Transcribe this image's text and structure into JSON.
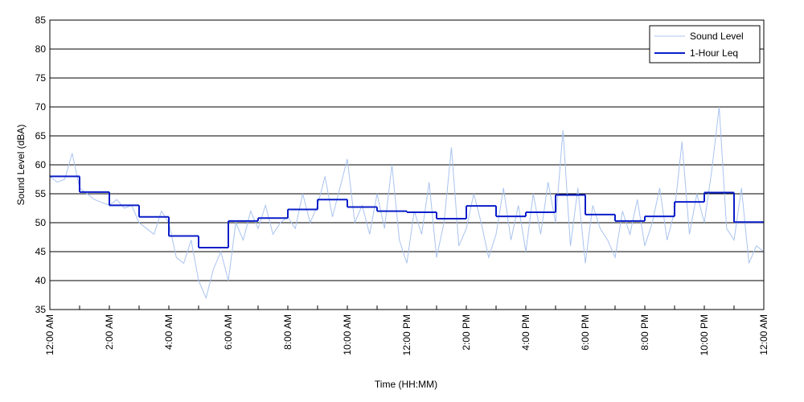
{
  "chart_data": {
    "type": "line",
    "xlabel": "Time (HH:MM)",
    "ylabel": "Sound Level (dBA)",
    "xlim": [
      0,
      24
    ],
    "ylim": [
      35,
      85
    ],
    "xticks": [
      {
        "value": 0,
        "label": "12:00 AM"
      },
      {
        "value": 2,
        "label": "2:00 AM"
      },
      {
        "value": 4,
        "label": "4:00 AM"
      },
      {
        "value": 6,
        "label": "6:00 AM"
      },
      {
        "value": 8,
        "label": "8:00 AM"
      },
      {
        "value": 10,
        "label": "10:00 AM"
      },
      {
        "value": 12,
        "label": "12:00 PM"
      },
      {
        "value": 14,
        "label": "2:00 PM"
      },
      {
        "value": 16,
        "label": "4:00 PM"
      },
      {
        "value": 18,
        "label": "6:00 PM"
      },
      {
        "value": 20,
        "label": "8:00 PM"
      },
      {
        "value": 22,
        "label": "10:00 PM"
      },
      {
        "value": 24,
        "label": "12:00 AM"
      }
    ],
    "xminor_ticks": [
      1,
      3,
      5,
      7,
      9,
      11,
      13,
      15,
      17,
      19,
      21,
      23
    ],
    "yticks": [
      35,
      40,
      45,
      50,
      55,
      60,
      65,
      70,
      75,
      80,
      85
    ],
    "grid": true,
    "legend": "upper right",
    "series": [
      {
        "name": "Sound Level",
        "color": "#a9c3ef",
        "step": false,
        "x": [
          0,
          0.25,
          0.5,
          0.75,
          1,
          1.25,
          1.5,
          1.75,
          2,
          2.25,
          2.5,
          2.75,
          3,
          3.25,
          3.5,
          3.75,
          4,
          4.25,
          4.5,
          4.75,
          5,
          5.25,
          5.5,
          5.75,
          6,
          6.25,
          6.5,
          6.75,
          7,
          7.25,
          7.5,
          7.75,
          8,
          8.25,
          8.5,
          8.75,
          9,
          9.25,
          9.5,
          9.75,
          10,
          10.25,
          10.5,
          10.75,
          11,
          11.25,
          11.5,
          11.75,
          12,
          12.25,
          12.5,
          12.75,
          13,
          13.25,
          13.5,
          13.75,
          14,
          14.25,
          14.5,
          14.75,
          15,
          15.25,
          15.5,
          15.75,
          16,
          16.25,
          16.5,
          16.75,
          17,
          17.25,
          17.5,
          17.75,
          18,
          18.25,
          18.5,
          18.75,
          19,
          19.25,
          19.5,
          19.75,
          20,
          20.25,
          20.5,
          20.75,
          21,
          21.25,
          21.5,
          21.75,
          22,
          22.25,
          22.5,
          22.75,
          23,
          23.25,
          23.5,
          23.75,
          24
        ],
        "values": [
          58,
          57,
          57.5,
          62,
          56,
          55,
          54,
          53.5,
          53,
          54,
          52.5,
          53,
          50,
          49,
          48,
          52,
          50,
          44,
          43,
          47,
          40,
          37,
          42,
          45,
          40,
          50,
          47,
          52,
          49,
          53,
          48,
          50,
          51,
          49,
          55,
          50,
          53,
          58,
          51,
          56,
          61,
          50,
          53,
          48,
          55,
          49,
          60,
          47,
          43,
          52,
          48,
          57,
          44,
          50,
          63,
          46,
          49,
          55,
          50,
          44,
          48,
          56,
          47,
          53,
          45,
          55,
          48,
          57,
          50,
          66,
          46,
          56,
          43,
          53,
          49,
          47,
          44,
          52,
          48,
          54,
          46,
          50,
          56,
          47,
          52,
          64,
          48,
          55,
          50,
          59,
          70,
          49,
          47,
          56,
          43,
          46,
          45
        ]
      },
      {
        "name": "1-Hour Leq",
        "color": "#0a1ec8",
        "step": true,
        "x": [
          0,
          1,
          2,
          3,
          4,
          5,
          6,
          7,
          8,
          9,
          10,
          11,
          12,
          13,
          14,
          15,
          16,
          17,
          18,
          19,
          20,
          21,
          22,
          23
        ],
        "values": [
          58,
          55.3,
          53,
          51,
          47.7,
          45.7,
          50.3,
          50.8,
          52.3,
          54,
          52.7,
          52,
          51.8,
          50.7,
          52.9,
          51.1,
          51.8,
          54.8,
          51.4,
          50.3,
          51.1,
          53.6,
          55.2,
          50.1
        ]
      }
    ]
  }
}
